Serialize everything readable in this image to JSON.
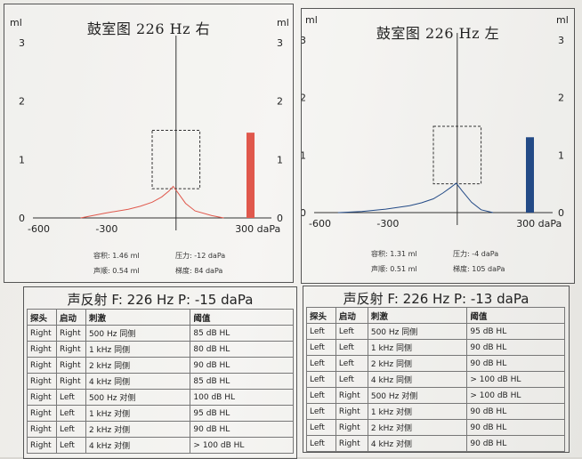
{
  "tymp_right": {
    "title": "鼓室图 226 Hz 右",
    "unit_left": "ml",
    "unit_right": "ml",
    "yticks": [
      "3",
      "2",
      "1",
      "0"
    ],
    "xticks": [
      "-600",
      "-300",
      "300 daPa"
    ],
    "info": {
      "volume": "容积:   1.46 ml",
      "pressure": "压力:  -12 daPa",
      "compliance": "声顺:   0.54 ml",
      "gradient": "梯度:  84 daPa"
    },
    "bar_value": 1.46,
    "peak": {
      "pressure": -12,
      "compliance": 0.54
    },
    "color": "#e0584c",
    "chart_data": {
      "type": "line",
      "title": "鼓室图 226 Hz 右",
      "xlabel": "daPa",
      "ylabel": "ml",
      "xlim": [
        -600,
        400
      ],
      "ylim": [
        0,
        3
      ],
      "x": [
        -400,
        -300,
        -200,
        -150,
        -100,
        -60,
        -30,
        -12,
        10,
        40,
        80,
        150,
        200
      ],
      "y": [
        0.0,
        0.08,
        0.15,
        0.2,
        0.27,
        0.36,
        0.46,
        0.54,
        0.42,
        0.25,
        0.12,
        0.04,
        0.0
      ],
      "bar": {
        "label": "容积",
        "value": 1.46
      },
      "box": {
        "x": [
          -100,
          100
        ],
        "y": [
          0.5,
          1.5
        ]
      }
    }
  },
  "tymp_left": {
    "title": "鼓室图 226 Hz 左",
    "unit_left": "ml",
    "unit_right": "ml",
    "yticks": [
      "3",
      "2",
      "1",
      "0"
    ],
    "xticks": [
      "-600",
      "-300",
      "300 daPa"
    ],
    "info": {
      "volume": "容积:   1.31 ml",
      "pressure": "压力:  -4 daPa",
      "compliance": "声顺:   0.51 ml",
      "gradient": "梯度:  105 daPa"
    },
    "bar_value": 1.31,
    "peak": {
      "pressure": -4,
      "compliance": 0.51
    },
    "color": "#234a86",
    "chart_data": {
      "type": "line",
      "title": "鼓室图 226 Hz 左",
      "xlabel": "daPa",
      "ylabel": "ml",
      "xlim": [
        -600,
        400
      ],
      "ylim": [
        0,
        3
      ],
      "x": [
        -500,
        -400,
        -300,
        -200,
        -150,
        -100,
        -60,
        -30,
        -4,
        20,
        60,
        100,
        150
      ],
      "y": [
        0.0,
        0.02,
        0.06,
        0.12,
        0.17,
        0.24,
        0.34,
        0.43,
        0.51,
        0.38,
        0.18,
        0.05,
        0.0
      ],
      "bar": {
        "label": "容积",
        "value": 1.31
      },
      "box": {
        "x": [
          -100,
          100
        ],
        "y": [
          0.5,
          1.5
        ]
      }
    }
  },
  "reflex_right": {
    "title_zh": "声反射",
    "title_rest": "  F: 226 Hz  P: -15 daPa",
    "headers": [
      "探头",
      "启动",
      "刺激",
      "阈值"
    ],
    "rows": [
      [
        "Right",
        "Right",
        "500 Hz 同侧",
        "85 dB HL"
      ],
      [
        "Right",
        "Right",
        "1 kHz 同侧",
        "80 dB HL"
      ],
      [
        "Right",
        "Right",
        "2 kHz 同侧",
        "90 dB HL"
      ],
      [
        "Right",
        "Right",
        "4 kHz 同侧",
        "85 dB HL"
      ],
      [
        "Right",
        "Left",
        "500 Hz 对侧",
        "100 dB HL"
      ],
      [
        "Right",
        "Left",
        "1 kHz 对侧",
        "95 dB HL"
      ],
      [
        "Right",
        "Left",
        "2 kHz 对侧",
        "90 dB HL"
      ],
      [
        "Right",
        "Left",
        "4 kHz 对侧",
        "> 100 dB HL"
      ]
    ]
  },
  "reflex_left": {
    "title_zh": "声反射",
    "title_rest": "  F: 226 Hz  P: -13 daPa",
    "headers": [
      "探头",
      "启动",
      "刺激",
      "阈值"
    ],
    "rows": [
      [
        "Left",
        "Left",
        "500 Hz 同侧",
        "95 dB HL"
      ],
      [
        "Left",
        "Left",
        "1 kHz 同侧",
        "90 dB HL"
      ],
      [
        "Left",
        "Left",
        "2 kHz 同侧",
        "90 dB HL"
      ],
      [
        "Left",
        "Left",
        "4 kHz 同侧",
        "> 100 dB HL"
      ],
      [
        "Left",
        "Right",
        "500 Hz 对侧",
        "> 100 dB HL"
      ],
      [
        "Left",
        "Right",
        "1 kHz 对侧",
        "90 dB HL"
      ],
      [
        "Left",
        "Right",
        "2 kHz 对侧",
        "90 dB HL"
      ],
      [
        "Left",
        "Right",
        "4 kHz 对侧",
        "90 dB HL"
      ]
    ]
  }
}
